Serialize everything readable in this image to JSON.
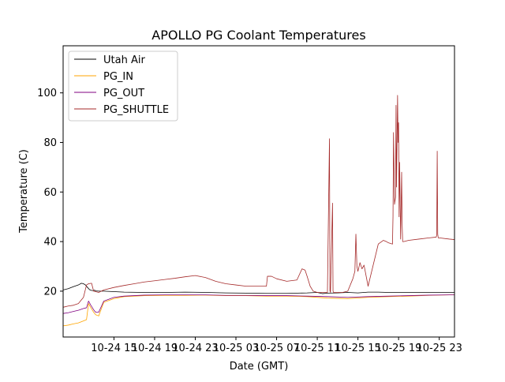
{
  "chart_data": {
    "type": "line",
    "title": "APOLLO PG Coolant Temperatures",
    "xlabel": "Date (GMT)",
    "ylabel": "Temperature (C)",
    "x_unit": "hours since 2024-10-24 10:00 GMT",
    "xlim": [
      0,
      38.5
    ],
    "ylim": [
      1.5,
      119
    ],
    "grid": false,
    "legend_position": "top-left",
    "x_ticks": [
      {
        "value": 5,
        "label": "10-24 15"
      },
      {
        "value": 9,
        "label": "10-24 19"
      },
      {
        "value": 13,
        "label": "10-24 23"
      },
      {
        "value": 17,
        "label": "10-25 03"
      },
      {
        "value": 21,
        "label": "10-25 07"
      },
      {
        "value": 25,
        "label": "10-25 11"
      },
      {
        "value": 29,
        "label": "10-25 15"
      },
      {
        "value": 33,
        "label": "10-25 19"
      },
      {
        "value": 37,
        "label": "10-25 23"
      }
    ],
    "y_ticks": [
      {
        "value": 20,
        "label": "20"
      },
      {
        "value": 40,
        "label": "40"
      },
      {
        "value": 60,
        "label": "60"
      },
      {
        "value": 80,
        "label": "80"
      },
      {
        "value": 100,
        "label": "100"
      }
    ],
    "series": [
      {
        "name": "Utah Air",
        "color": "#000000",
        "x": [
          0,
          0.5,
          1.0,
          1.5,
          1.8,
          2.0,
          2.2,
          2.4,
          2.6,
          2.8,
          3.0,
          3.1,
          3.2,
          3.5,
          4.0,
          5.0,
          6.0,
          8.0,
          10.0,
          12.0,
          14.0,
          16.0,
          18.0,
          20.0,
          22.0,
          24.0,
          25.0,
          25.5,
          26.0,
          27.0,
          28.0,
          29.0,
          30.0,
          31.0,
          32.0,
          33.0,
          34.0,
          35.0,
          36.0,
          37.0,
          38.0,
          38.5
        ],
        "y": [
          20.5,
          21,
          21.8,
          22.5,
          23.2,
          23.0,
          22.5,
          21.5,
          20.6,
          20.3,
          20.2,
          20.4,
          20.1,
          20.0,
          20.0,
          19.8,
          19.6,
          19.5,
          19.5,
          19.6,
          19.5,
          19.3,
          19.2,
          19.1,
          19.1,
          19.3,
          19.5,
          19.0,
          19.2,
          19.3,
          19.5,
          19.3,
          19.6,
          19.6,
          19.5,
          19.5,
          19.5,
          19.5,
          19.5,
          19.5,
          19.5,
          19.5
        ]
      },
      {
        "name": "PG_IN",
        "color": "#ffa500",
        "x": [
          0,
          0.5,
          1.0,
          1.5,
          2.0,
          2.3,
          2.5,
          2.7,
          3.0,
          3.2,
          3.5,
          4.0,
          5.0,
          6.0,
          7.0,
          8.0,
          10.0,
          12.0,
          14.0,
          16.0,
          18.0,
          20.0,
          22.0,
          24.0,
          26.0,
          28.0,
          30.0,
          32.0,
          34.0,
          36.0,
          38.0,
          38.5
        ],
        "y": [
          6.0,
          6.3,
          6.8,
          7.2,
          8.0,
          8.5,
          15.0,
          13.5,
          11.5,
          10.5,
          10.0,
          15.5,
          17.0,
          17.8,
          18.0,
          18.2,
          18.3,
          18.3,
          18.4,
          18.2,
          18.2,
          18.0,
          18.0,
          17.8,
          17.2,
          17.0,
          17.5,
          17.8,
          18.0,
          18.3,
          18.5,
          18.5
        ]
      },
      {
        "name": "PG_OUT",
        "color": "#800080",
        "x": [
          0,
          0.5,
          1.0,
          1.5,
          2.0,
          2.3,
          2.5,
          2.7,
          3.0,
          3.2,
          3.5,
          4.0,
          5.0,
          6.0,
          7.0,
          8.0,
          10.0,
          12.0,
          14.0,
          16.0,
          18.0,
          20.0,
          22.0,
          24.0,
          26.0,
          28.0,
          30.0,
          32.0,
          34.0,
          36.0,
          38.0,
          38.5
        ],
        "y": [
          11.0,
          11.3,
          11.8,
          12.3,
          13.0,
          13.3,
          16.0,
          14.5,
          12.5,
          11.5,
          11.5,
          16.0,
          17.5,
          18.0,
          18.2,
          18.4,
          18.5,
          18.5,
          18.5,
          18.3,
          18.3,
          18.2,
          18.2,
          18.0,
          17.8,
          17.5,
          17.8,
          18.0,
          18.2,
          18.4,
          18.5,
          18.5
        ]
      },
      {
        "name": "PG_SHUTTLE",
        "color": "#a52a2a",
        "x": [
          0,
          0.5,
          1.0,
          1.5,
          2.0,
          2.3,
          2.5,
          2.8,
          3.0,
          3.5,
          4.0,
          5.0,
          6.0,
          7.0,
          8.0,
          9.0,
          10.0,
          11.0,
          12.0,
          13.0,
          14.0,
          15.0,
          16.0,
          17.0,
          18.0,
          19.0,
          20.0,
          20.1,
          20.5,
          21.0,
          22.0,
          23.0,
          23.5,
          23.8,
          24.0,
          24.3,
          24.6,
          25.0,
          26.0,
          26.2,
          26.25,
          26.3,
          26.5,
          26.55,
          26.6,
          27.0,
          27.5,
          28.0,
          28.5,
          28.7,
          28.8,
          28.9,
          29.0,
          29.2,
          29.4,
          29.6,
          30.0,
          31.0,
          31.5,
          31.8,
          32.0,
          32.4,
          32.45,
          32.5,
          32.6,
          32.7,
          32.75,
          32.8,
          32.9,
          32.95,
          33.0,
          33.05,
          33.1,
          33.2,
          33.3,
          33.35,
          33.4,
          33.5,
          34.0,
          35.0,
          36.0,
          36.7,
          36.75,
          36.8,
          36.85,
          36.9,
          37.0,
          38.0,
          38.5
        ],
        "y": [
          13.5,
          14.0,
          14.3,
          15.0,
          17.5,
          22.5,
          23.0,
          23.2,
          20.0,
          19.5,
          20.5,
          21.5,
          22.3,
          23.0,
          23.7,
          24.2,
          24.7,
          25.2,
          25.8,
          26.3,
          25.5,
          24.0,
          23.0,
          22.5,
          22.0,
          22.0,
          22.0,
          26.0,
          26.0,
          25.0,
          24.0,
          24.5,
          29.0,
          28.5,
          26.0,
          22.0,
          20.0,
          19.5,
          19.5,
          81.5,
          20.0,
          19.5,
          55.5,
          20.0,
          19.5,
          19.5,
          19.5,
          20.0,
          25.0,
          28.0,
          43.0,
          30.0,
          28.0,
          31.5,
          29.0,
          30.5,
          22.0,
          39.0,
          40.5,
          40.0,
          39.5,
          39.0,
          50.0,
          84.0,
          55.0,
          58.0,
          95.0,
          62.0,
          99.0,
          80.0,
          88.0,
          50.0,
          72.0,
          41.0,
          68.0,
          47.0,
          40.0,
          40.0,
          40.5,
          41.0,
          41.5,
          41.8,
          42.5,
          76.5,
          43.0,
          41.5,
          41.5,
          41.0,
          40.8
        ]
      }
    ]
  }
}
